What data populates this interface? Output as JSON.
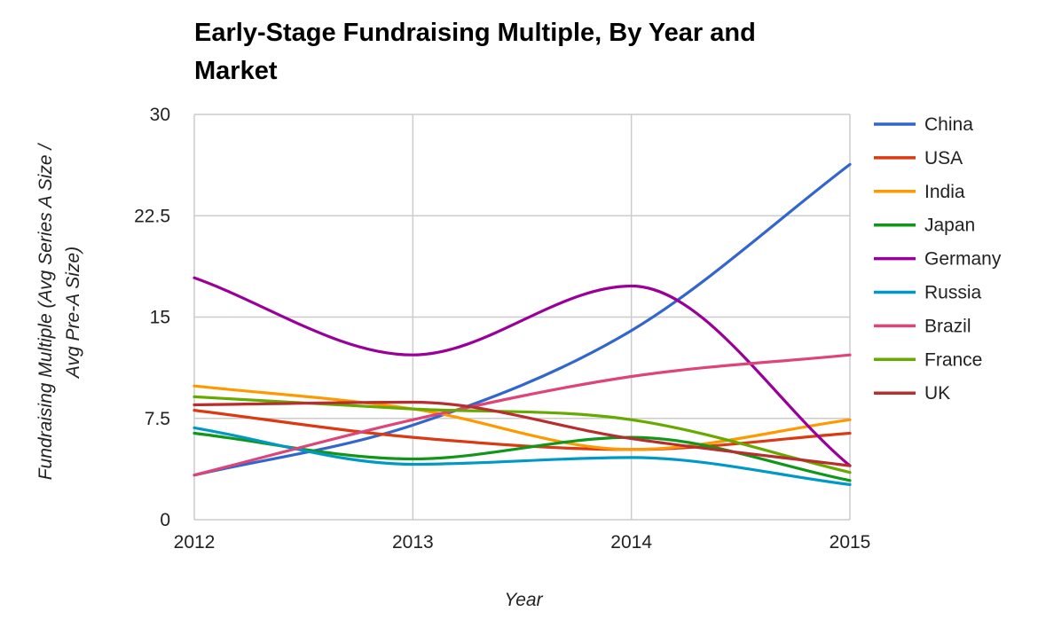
{
  "chart_data": {
    "type": "line",
    "title": "Early-Stage Fundraising Multiple, By Year and Market",
    "title_lines": [
      "Early-Stage Fundraising Multiple, By Year and",
      "Market"
    ],
    "xlabel": "Year",
    "ylabel": "Fundraising Multiple (Avg Series A Size / Avg Pre-A Size)",
    "ylabel_lines": [
      "Fundraising Multiple (Avg Series A Size /",
      "Avg Pre-A Size)"
    ],
    "x": [
      2012,
      2013,
      2014,
      2015
    ],
    "x_tick_labels": [
      "2012",
      "2013",
      "2014",
      "2015"
    ],
    "ylim": [
      0,
      30
    ],
    "y_ticks": [
      0,
      7.5,
      15,
      22.5,
      30
    ],
    "y_tick_labels": [
      "0",
      "7.5",
      "15",
      "22.5",
      "30"
    ],
    "grid": true,
    "smooth": true,
    "legend_position": "right",
    "series": [
      {
        "name": "China",
        "color": "#3366cc",
        "values": [
          3.3,
          7.0,
          14.0,
          26.3
        ]
      },
      {
        "name": "USA",
        "color": "#dc3912",
        "values": [
          8.1,
          6.1,
          5.2,
          6.4
        ]
      },
      {
        "name": "India",
        "color": "#ff9900",
        "values": [
          9.9,
          8.2,
          5.2,
          7.4
        ]
      },
      {
        "name": "Japan",
        "color": "#109618",
        "values": [
          6.4,
          4.5,
          6.1,
          2.9
        ]
      },
      {
        "name": "Germany",
        "color": "#990099",
        "values": [
          17.9,
          12.2,
          17.3,
          4.0
        ]
      },
      {
        "name": "Russia",
        "color": "#0099c6",
        "values": [
          6.8,
          4.1,
          4.6,
          2.6
        ]
      },
      {
        "name": "Brazil",
        "color": "#dd4477",
        "values": [
          3.3,
          7.4,
          10.6,
          12.2
        ]
      },
      {
        "name": "France",
        "color": "#66aa00",
        "values": [
          9.1,
          8.2,
          7.4,
          3.5
        ]
      },
      {
        "name": "UK",
        "color": "#b82e2e",
        "values": [
          8.5,
          8.7,
          6.0,
          4.0
        ]
      }
    ]
  }
}
